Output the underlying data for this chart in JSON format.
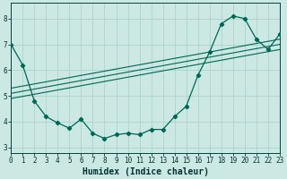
{
  "xlabel": "Humidex (Indice chaleur)",
  "background_color": "#cce8e2",
  "grid_color": "#aad4cc",
  "line_color": "#006655",
  "spine_color": "#004444",
  "xlim": [
    0,
    23
  ],
  "ylim": [
    2.8,
    8.6
  ],
  "yticks": [
    3,
    4,
    5,
    6,
    7,
    8
  ],
  "xticks": [
    0,
    1,
    2,
    3,
    4,
    5,
    6,
    7,
    8,
    9,
    10,
    11,
    12,
    13,
    14,
    15,
    16,
    17,
    18,
    19,
    20,
    21,
    22,
    23
  ],
  "main_x": [
    0,
    1,
    2,
    3,
    4,
    5,
    6,
    7,
    8,
    9,
    10,
    11,
    12,
    13,
    14,
    15,
    16,
    17,
    18,
    19,
    20,
    21,
    22,
    23
  ],
  "main_y": [
    7.0,
    6.2,
    4.8,
    4.2,
    3.95,
    3.75,
    4.1,
    3.55,
    3.35,
    3.5,
    3.55,
    3.5,
    3.7,
    3.7,
    4.2,
    4.6,
    5.8,
    6.7,
    7.8,
    8.1,
    8.0,
    7.2,
    6.8,
    7.4
  ],
  "trend_lines": [
    [
      0,
      23,
      4.9,
      6.8
    ],
    [
      0,
      23,
      5.1,
      7.0
    ],
    [
      0,
      23,
      5.3,
      7.2
    ]
  ],
  "xlabel_fontsize": 7,
  "tick_fontsize": 5.5,
  "tick_color": "#003333",
  "xlabel_color": "#003333"
}
